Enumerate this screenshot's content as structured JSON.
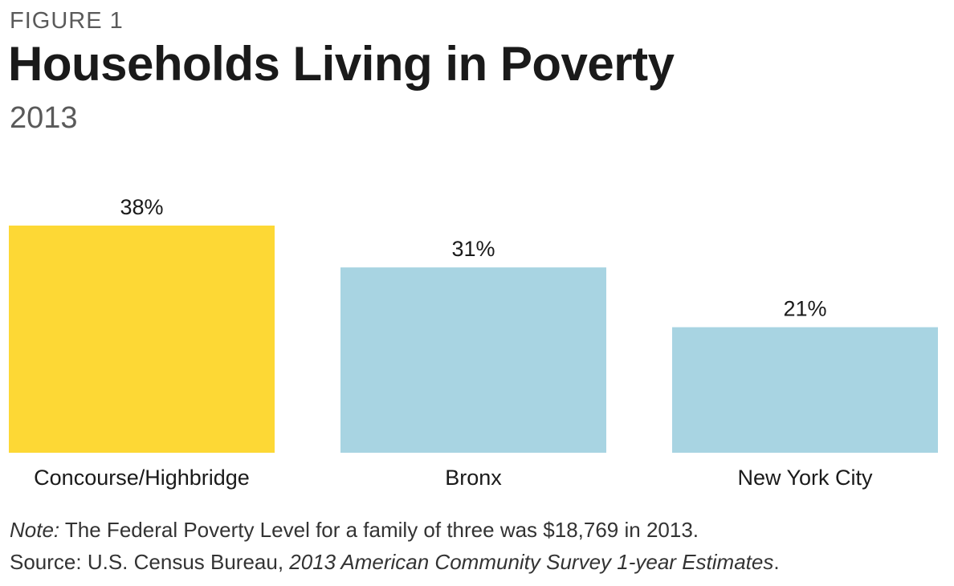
{
  "figure": {
    "label": "FIGURE 1",
    "title": "Households Living in Poverty",
    "subtitle": "2013"
  },
  "colors": {
    "highlight": "#FDD835",
    "default": "#A8D4E2"
  },
  "chart_data": {
    "type": "bar",
    "title": "Households Living in Poverty",
    "subtitle": "2013",
    "categories": [
      "Concourse/Highbridge",
      "Bronx",
      "New York City"
    ],
    "values": [
      38,
      31,
      21
    ],
    "value_labels": [
      "38%",
      "31%",
      "21%"
    ],
    "highlight_index": 0,
    "xlabel": "",
    "ylabel": "",
    "ylim": [
      0,
      38
    ],
    "grid": false
  },
  "footnote": {
    "note_label": "Note:",
    "note_text": " The Federal Poverty Level for a family of three was $18,769 in 2013.",
    "source_label": "Source: U.S. Census Bureau, ",
    "source_title": "2013 American Community Survey 1-year Estimates",
    "source_end": "."
  }
}
